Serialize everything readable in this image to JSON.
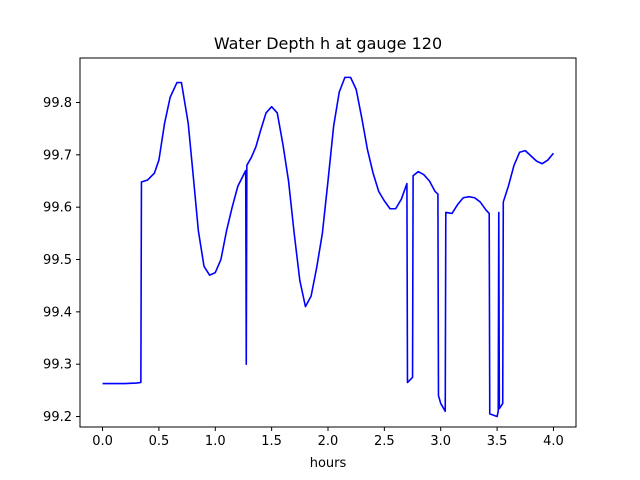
{
  "chart_data": {
    "type": "line",
    "title": "Water Depth h at gauge 120",
    "xlabel": "hours",
    "ylabel": "",
    "xlim": [
      -0.2,
      4.2
    ],
    "ylim": [
      99.18,
      99.885
    ],
    "xticks": [
      0.0,
      0.5,
      1.0,
      1.5,
      2.0,
      2.5,
      3.0,
      3.5,
      4.0
    ],
    "xtick_labels": [
      "0.0",
      "0.5",
      "1.0",
      "1.5",
      "2.0",
      "2.5",
      "3.0",
      "3.5",
      "4.0"
    ],
    "yticks": [
      99.2,
      99.3,
      99.4,
      99.5,
      99.6,
      99.7,
      99.8
    ],
    "ytick_labels": [
      "99.2",
      "99.3",
      "99.4",
      "99.5",
      "99.6",
      "99.7",
      "99.8"
    ],
    "grid": false,
    "color": "#0000ff",
    "series": [
      {
        "points": [
          [
            0.0,
            99.263
          ],
          [
            0.1,
            99.263
          ],
          [
            0.2,
            99.263
          ],
          [
            0.3,
            99.264
          ],
          [
            0.34,
            99.265
          ],
          [
            0.345,
            99.648
          ],
          [
            0.4,
            99.652
          ],
          [
            0.46,
            99.665
          ],
          [
            0.5,
            99.69
          ],
          [
            0.55,
            99.76
          ],
          [
            0.6,
            99.81
          ],
          [
            0.66,
            99.838
          ],
          [
            0.7,
            99.838
          ],
          [
            0.76,
            99.76
          ],
          [
            0.8,
            99.67
          ],
          [
            0.85,
            99.555
          ],
          [
            0.9,
            99.487
          ],
          [
            0.95,
            99.47
          ],
          [
            1.0,
            99.475
          ],
          [
            1.05,
            99.5
          ],
          [
            1.1,
            99.555
          ],
          [
            1.15,
            99.6
          ],
          [
            1.2,
            99.64
          ],
          [
            1.27,
            99.67
          ],
          [
            1.275,
            99.3
          ],
          [
            1.28,
            99.68
          ],
          [
            1.32,
            99.695
          ],
          [
            1.36,
            99.715
          ],
          [
            1.4,
            99.745
          ],
          [
            1.45,
            99.78
          ],
          [
            1.5,
            99.792
          ],
          [
            1.55,
            99.78
          ],
          [
            1.6,
            99.72
          ],
          [
            1.65,
            99.65
          ],
          [
            1.7,
            99.55
          ],
          [
            1.75,
            99.46
          ],
          [
            1.8,
            99.41
          ],
          [
            1.85,
            99.43
          ],
          [
            1.9,
            99.485
          ],
          [
            1.95,
            99.55
          ],
          [
            2.0,
            99.65
          ],
          [
            2.05,
            99.755
          ],
          [
            2.1,
            99.82
          ],
          [
            2.15,
            99.848
          ],
          [
            2.2,
            99.848
          ],
          [
            2.25,
            99.825
          ],
          [
            2.3,
            99.77
          ],
          [
            2.35,
            99.71
          ],
          [
            2.4,
            99.665
          ],
          [
            2.45,
            99.63
          ],
          [
            2.5,
            99.612
          ],
          [
            2.55,
            99.597
          ],
          [
            2.6,
            99.597
          ],
          [
            2.65,
            99.615
          ],
          [
            2.7,
            99.645
          ],
          [
            2.705,
            99.265
          ],
          [
            2.75,
            99.275
          ],
          [
            2.755,
            99.66
          ],
          [
            2.8,
            99.668
          ],
          [
            2.85,
            99.662
          ],
          [
            2.9,
            99.65
          ],
          [
            2.95,
            99.63
          ],
          [
            2.975,
            99.625
          ],
          [
            2.98,
            99.24
          ],
          [
            3.0,
            99.225
          ],
          [
            3.04,
            99.21
          ],
          [
            3.045,
            99.59
          ],
          [
            3.1,
            99.588
          ],
          [
            3.15,
            99.605
          ],
          [
            3.2,
            99.618
          ],
          [
            3.25,
            99.62
          ],
          [
            3.3,
            99.618
          ],
          [
            3.35,
            99.61
          ],
          [
            3.4,
            99.595
          ],
          [
            3.43,
            99.588
          ],
          [
            3.435,
            99.205
          ],
          [
            3.5,
            99.2
          ],
          [
            3.51,
            99.21
          ],
          [
            3.515,
            99.59
          ],
          [
            3.52,
            99.215
          ],
          [
            3.55,
            99.225
          ],
          [
            3.555,
            99.61
          ],
          [
            3.6,
            99.64
          ],
          [
            3.65,
            99.68
          ],
          [
            3.7,
            99.705
          ],
          [
            3.75,
            99.708
          ],
          [
            3.8,
            99.698
          ],
          [
            3.85,
            99.688
          ],
          [
            3.9,
            99.683
          ],
          [
            3.95,
            99.69
          ],
          [
            4.0,
            99.703
          ]
        ]
      }
    ]
  }
}
